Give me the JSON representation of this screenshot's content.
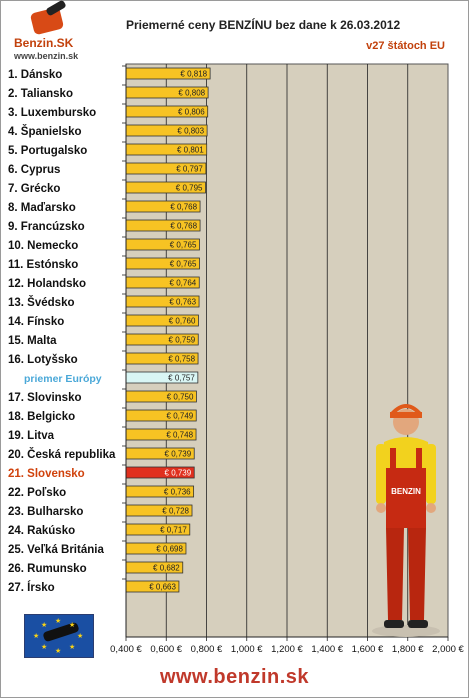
{
  "logo": {
    "brand": "Benzin.SK",
    "url": "www.benzin.sk"
  },
  "header": {
    "title": "Priemerné ceny BENZÍNU bez dane k 26.03.2012",
    "subtitle": "v27 štátoch EU"
  },
  "footer": {
    "url": "www.benzin.sk"
  },
  "colors": {
    "bar": "#f7c323",
    "average_bar": "#d9f6f4",
    "highlight_bar": "#e0301e",
    "plot_bg": "#d6cfbd",
    "highlight_text": "#d0420c",
    "average_text": "#4aa8d8"
  },
  "chart_data": {
    "type": "bar",
    "orientation": "horizontal",
    "title": "Priemerné ceny BENZÍNU bez dane k 26.03.2012",
    "subtitle": "v27 štátoch EU",
    "xlim": [
      0.4,
      2.0
    ],
    "xticks": [
      "0,400 €",
      "0,600 €",
      "0,800 €",
      "1,000 €",
      "1,200 €",
      "1,400 €",
      "1,600 €",
      "1,800 €",
      "2,000 €"
    ],
    "grid": true,
    "categories": [
      "1. Dánsko",
      "2. Taliansko",
      "3. Luxembursko",
      "4. Španielsko",
      "5. Portugalsko",
      "6. Cyprus",
      "7. Grécko",
      "8. Maďarsko",
      "9. Francúzsko",
      "10. Nemecko",
      "11. Estónsko",
      "12. Holandsko",
      "13. Švédsko",
      "14. Fínsko",
      "15. Malta",
      "16. Lotyšsko",
      "priemer Európy",
      "17. Slovinsko",
      "18. Belgicko",
      "19. Litva",
      "20. Česká republika",
      "21. Slovensko",
      "22. Poľsko",
      "23. Bulharsko",
      "24. Rakúsko",
      "25. Veľká Británia",
      "26. Rumunsko",
      "27. Írsko"
    ],
    "values": [
      0.818,
      0.808,
      0.806,
      0.803,
      0.801,
      0.797,
      0.795,
      0.768,
      0.768,
      0.765,
      0.765,
      0.764,
      0.763,
      0.76,
      0.759,
      0.758,
      0.757,
      0.75,
      0.749,
      0.748,
      0.739,
      0.739,
      0.736,
      0.728,
      0.717,
      0.698,
      0.682,
      0.663
    ],
    "value_labels": [
      "€ 0,818",
      "€ 0,808",
      "€ 0,806",
      "€ 0,803",
      "€ 0,801",
      "€ 0,797",
      "€ 0,795",
      "€ 0,768",
      "€ 0,768",
      "€ 0,765",
      "€ 0,765",
      "€ 0,764",
      "€ 0,763",
      "€ 0,760",
      "€ 0,759",
      "€ 0,758",
      "€ 0,757",
      "€ 0,750",
      "€ 0,749",
      "€ 0,748",
      "€ 0,739",
      "€ 0,739",
      "€ 0,736",
      "€ 0,728",
      "€ 0,717",
      "€ 0,698",
      "€ 0,682",
      "€ 0,663"
    ],
    "average_index": 16,
    "highlight_index": 21
  }
}
